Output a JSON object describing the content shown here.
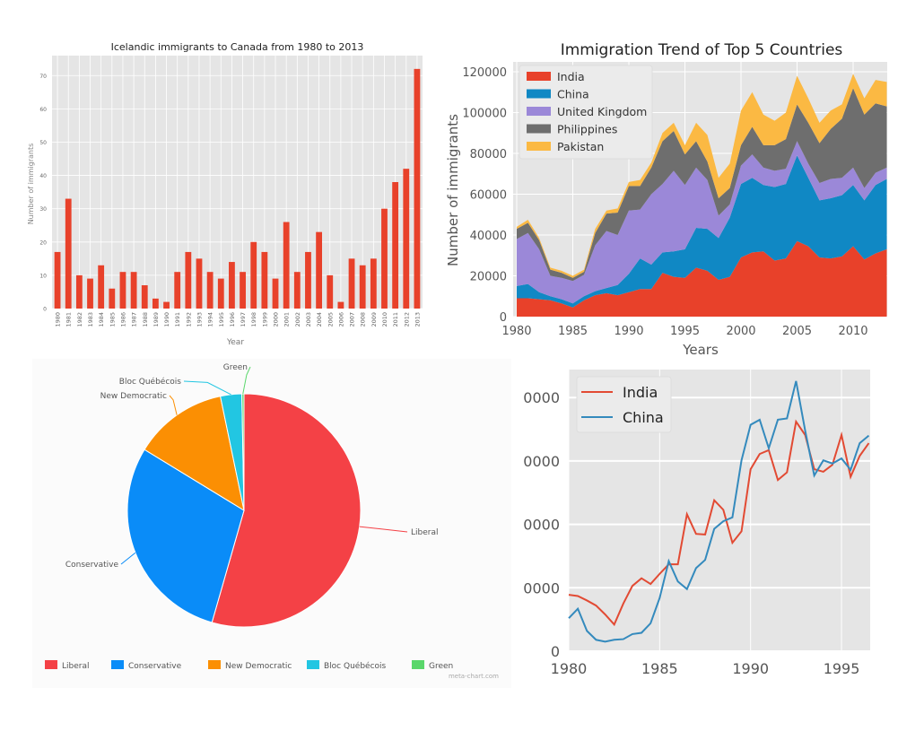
{
  "chart_data": [
    {
      "type": "bar",
      "title": "Icelandic immigrants to Canada from 1980 to 2013",
      "xlabel": "Year",
      "ylabel": "Number of immigrants",
      "categories": [
        "1980",
        "1981",
        "1982",
        "1983",
        "1984",
        "1985",
        "1986",
        "1987",
        "1988",
        "1989",
        "1990",
        "1991",
        "1992",
        "1993",
        "1994",
        "1995",
        "1996",
        "1997",
        "1998",
        "1999",
        "2000",
        "2001",
        "2002",
        "2003",
        "2004",
        "2005",
        "2006",
        "2007",
        "2008",
        "2009",
        "2010",
        "2011",
        "2012",
        "2013"
      ],
      "values": [
        17,
        33,
        10,
        9,
        13,
        6,
        11,
        11,
        7,
        3,
        2,
        11,
        17,
        15,
        11,
        9,
        14,
        11,
        20,
        17,
        9,
        26,
        11,
        17,
        23,
        10,
        2,
        15,
        13,
        15,
        30,
        38,
        42,
        72
      ],
      "yticks": [
        0,
        10,
        20,
        30,
        40,
        50,
        60,
        70
      ],
      "ylim": [
        0,
        76
      ],
      "grid": true,
      "color": "#e8412a"
    },
    {
      "type": "area",
      "stacked": true,
      "title": "Immigration Trend of Top 5 Countries",
      "xlabel": "Years",
      "ylabel": "Number of immigrants",
      "x": [
        1980,
        1981,
        1982,
        1983,
        1984,
        1985,
        1986,
        1987,
        1988,
        1989,
        1990,
        1991,
        1992,
        1993,
        1994,
        1995,
        1996,
        1997,
        1998,
        1999,
        2000,
        2001,
        2002,
        2003,
        2004,
        2005,
        2006,
        2007,
        2008,
        2009,
        2010,
        2011,
        2012,
        2013
      ],
      "series": [
        {
          "name": "India",
          "color": "#e8412a",
          "values": [
            9000,
            9000,
            8500,
            8000,
            6500,
            4500,
            8000,
            10500,
            11500,
            10500,
            12000,
            13500,
            13500,
            21500,
            19500,
            19000,
            24000,
            22500,
            18000,
            19500,
            29000,
            31500,
            32000,
            27500,
            28500,
            37000,
            34500,
            29000,
            28500,
            29500,
            34500,
            28000,
            31000,
            33000
          ]
        },
        {
          "name": "China",
          "color": "#1088c4",
          "values": [
            6000,
            7000,
            3500,
            2000,
            2000,
            2000,
            2000,
            2000,
            2500,
            5000,
            9000,
            15000,
            12000,
            10000,
            12500,
            14000,
            19500,
            20500,
            20500,
            29000,
            36000,
            36500,
            32500,
            36000,
            36500,
            42000,
            33500,
            28000,
            29500,
            30000,
            30000,
            29000,
            33500,
            34500
          ]
        },
        {
          "name": "United Kingdom",
          "color": "#9b88d8",
          "values": [
            23000,
            25000,
            21000,
            10000,
            10500,
            11000,
            10500,
            22500,
            28000,
            24500,
            31000,
            24000,
            34500,
            33500,
            39500,
            31500,
            29500,
            24000,
            11000,
            6500,
            9000,
            11500,
            8500,
            8000,
            7500,
            7000,
            7000,
            8500,
            9500,
            8500,
            8500,
            6000,
            6000,
            5500
          ]
        },
        {
          "name": "Philippines",
          "color": "#6e6e6e",
          "values": [
            5000,
            5000,
            4500,
            3000,
            2500,
            1500,
            1500,
            6000,
            8500,
            11000,
            12000,
            11500,
            13000,
            21000,
            19500,
            15000,
            13000,
            9000,
            8500,
            8000,
            10000,
            13500,
            11000,
            12500,
            14500,
            18000,
            20000,
            19500,
            24500,
            29000,
            39000,
            36000,
            34000,
            30000
          ]
        },
        {
          "name": "Pakistan",
          "color": "#fbb943",
          "values": [
            1000,
            1500,
            1000,
            1000,
            1000,
            1000,
            1000,
            2000,
            1500,
            2000,
            2000,
            3000,
            2500,
            4000,
            4000,
            4500,
            9000,
            13000,
            10000,
            12000,
            17000,
            17000,
            15000,
            12000,
            13000,
            14000,
            12000,
            10000,
            9000,
            7000,
            7000,
            8000,
            11500,
            12000
          ]
        }
      ],
      "xticks": [
        "1980",
        "1985",
        "1990",
        "1995",
        "2000",
        "2005",
        "2010"
      ],
      "yticks": [
        "0",
        "20000",
        "40000",
        "60000",
        "80000",
        "100000",
        "120000"
      ],
      "xlim": [
        1980,
        2013
      ],
      "ylim": [
        0,
        125000
      ],
      "legend": "top-left",
      "grid": true
    },
    {
      "type": "pie",
      "labels": [
        "Liberal",
        "Conservative",
        "New Democratic",
        "Bloc Québécois",
        "Green"
      ],
      "values": [
        184,
        99,
        44,
        10,
        1
      ],
      "colors": [
        "#f44146",
        "#0a8cf8",
        "#fb8f03",
        "#22c6e2",
        "#5ad76b"
      ],
      "legend": "bottom",
      "watermark": "meta-chart.com"
    },
    {
      "type": "line",
      "x": [
        1980,
        1980.5,
        1981,
        1981.5,
        1982,
        1982.5,
        1983,
        1983.5,
        1984,
        1984.5,
        1985,
        1985.5,
        1986,
        1986.5,
        1987,
        1987.5,
        1988,
        1988.5,
        1989,
        1989.5,
        1990,
        1990.5,
        1991,
        1991.5,
        1992,
        1992.5,
        1993,
        1993.5,
        1994,
        1994.5,
        1995,
        1995.5,
        1996,
        1996.5
      ],
      "series": [
        {
          "name": "India",
          "color": "#e24a33",
          "values": [
            0.89,
            0.87,
            0.8,
            0.72,
            0.58,
            0.42,
            0.75,
            1.03,
            1.15,
            1.06,
            1.22,
            1.37,
            1.37,
            2.16,
            1.85,
            1.84,
            2.38,
            2.23,
            1.71,
            1.89,
            2.87,
            3.11,
            3.17,
            2.7,
            2.82,
            3.62,
            3.41,
            2.87,
            2.83,
            2.94,
            3.41,
            2.75,
            3.08,
            3.28
          ]
        },
        {
          "name": "China",
          "color": "#348abd",
          "values": [
            0.52,
            0.67,
            0.32,
            0.18,
            0.15,
            0.18,
            0.19,
            0.27,
            0.29,
            0.44,
            0.84,
            1.42,
            1.1,
            0.98,
            1.31,
            1.44,
            1.93,
            2.05,
            2.11,
            3.01,
            3.57,
            3.65,
            3.2,
            3.65,
            3.67,
            4.26,
            3.48,
            2.77,
            3.01,
            2.96,
            3.04,
            2.86,
            3.28,
            3.4
          ]
        }
      ],
      "xticks": [
        "1980",
        "1985",
        "1990",
        "1995"
      ],
      "yticks": [
        "0",
        "0000",
        "0000",
        "0000",
        "0000"
      ],
      "xlim": [
        1980,
        1996.6
      ],
      "ylim": [
        0,
        4.5
      ],
      "legend": "top-left",
      "grid": true
    }
  ]
}
